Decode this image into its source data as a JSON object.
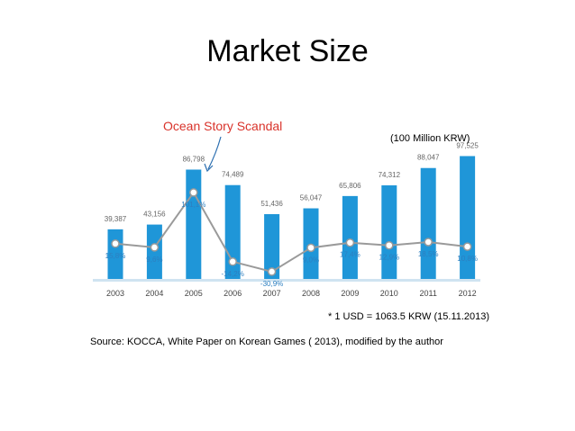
{
  "title": "Market Size",
  "annotation": "Ocean Story Scandal",
  "unit_note": "(100 Million KRW)",
  "fx_note": "* 1 USD = 1063.5 KRW (15.11.2013)",
  "source": "Source: KOCCA, White Paper on Korean Games ( 2013), modified by the author",
  "colors": {
    "bar": "#1f96d8",
    "growth_line": "#9a9a9a",
    "growth_marker_fill": "#ffffff",
    "label_text": "#666666",
    "growth_label": "#2d7fc0",
    "annotation": "#d9332b",
    "baseline": "#cfe3f1"
  },
  "chart_data": {
    "type": "bar",
    "categories": [
      "2003",
      "2004",
      "2005",
      "2006",
      "2007",
      "2008",
      "2009",
      "2010",
      "2011",
      "2012"
    ],
    "series": [
      {
        "type": "bar",
        "values": [
          39387,
          43156,
          86798,
          74489,
          51436,
          56047,
          65806,
          74312,
          88047,
          97525
        ],
        "value_labels": [
          "39,387",
          "43,156",
          "86,798",
          "74,489",
          "51,436",
          "56,047",
          "65,806",
          "74,312",
          "88,047",
          "97,525"
        ]
      },
      {
        "type": "line",
        "values": [
          15.8,
          9.6,
          101.1,
          -14.2,
          -30.9,
          9.0,
          17.4,
          12.9,
          18.5,
          10.8
        ],
        "value_labels": [
          "15,8%",
          "9,6%",
          "101,1%",
          "-14,2%",
          "-30,9%",
          "9,0%",
          "17,4%",
          "12,9%",
          "18,5%",
          "10,8%"
        ]
      }
    ],
    "ylim": [
      0,
      100000
    ],
    "growth_ylim": [
      -40,
      110
    ],
    "grid": false
  }
}
